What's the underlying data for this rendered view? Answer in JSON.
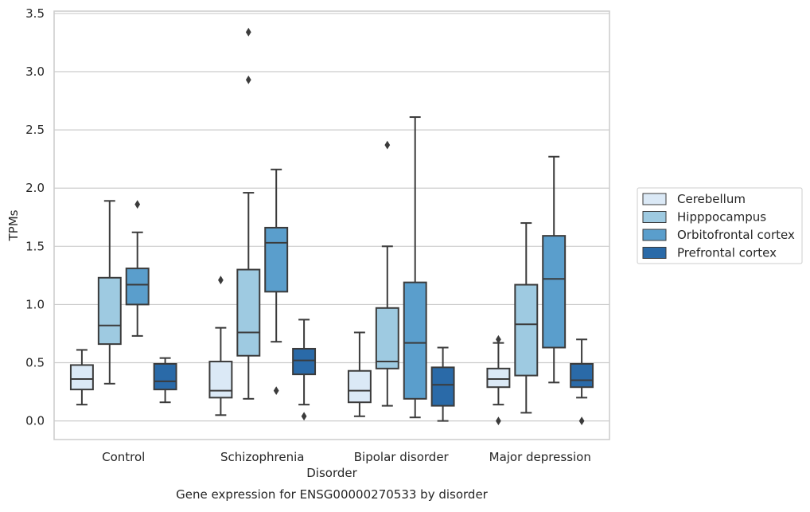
{
  "chart_data": {
    "type": "box",
    "title": "Gene expression for ENSG00000270533 by disorder",
    "xlabel": "Disorder",
    "ylabel": "TPMs",
    "ylim": [
      -0.16,
      3.52
    ],
    "yticks": [
      0.0,
      0.5,
      1.0,
      1.5,
      2.0,
      2.5,
      3.0,
      3.5
    ],
    "ytick_labels": [
      "0.0",
      "0.5",
      "1.0",
      "1.5",
      "2.0",
      "2.5",
      "3.0",
      "3.5"
    ],
    "grid": true,
    "legend_position": "right",
    "categories": [
      "Control",
      "Schizophrenia",
      "Bipolar disorder",
      "Major depression"
    ],
    "series": [
      {
        "name": "Cerebellum",
        "color": "#dbe9f6",
        "boxes": [
          {
            "whislo": 0.14,
            "q1": 0.27,
            "med": 0.36,
            "q3": 0.48,
            "whishi": 0.61,
            "fliers": []
          },
          {
            "whislo": 0.05,
            "q1": 0.2,
            "med": 0.26,
            "q3": 0.51,
            "whishi": 0.8,
            "fliers": [
              1.21
            ]
          },
          {
            "whislo": 0.04,
            "q1": 0.16,
            "med": 0.26,
            "q3": 0.43,
            "whishi": 0.76,
            "fliers": []
          },
          {
            "whislo": 0.14,
            "q1": 0.29,
            "med": 0.36,
            "q3": 0.45,
            "whishi": 0.67,
            "fliers": [
              0.7,
              0.0
            ]
          }
        ]
      },
      {
        "name": "Hipppocampus",
        "color": "#9ecae1",
        "boxes": [
          {
            "whislo": 0.32,
            "q1": 0.66,
            "med": 0.82,
            "q3": 1.23,
            "whishi": 1.89,
            "fliers": []
          },
          {
            "whislo": 0.19,
            "q1": 0.56,
            "med": 0.76,
            "q3": 1.3,
            "whishi": 1.96,
            "fliers": [
              3.34,
              2.93
            ]
          },
          {
            "whislo": 0.13,
            "q1": 0.45,
            "med": 0.51,
            "q3": 0.97,
            "whishi": 1.5,
            "fliers": [
              2.37
            ]
          },
          {
            "whislo": 0.07,
            "q1": 0.39,
            "med": 0.83,
            "q3": 1.17,
            "whishi": 1.7,
            "fliers": []
          }
        ]
      },
      {
        "name": "Orbitofrontal cortex",
        "color": "#5a9ecc",
        "boxes": [
          {
            "whislo": 0.73,
            "q1": 1.0,
            "med": 1.17,
            "q3": 1.31,
            "whishi": 1.62,
            "fliers": [
              1.86
            ]
          },
          {
            "whislo": 0.68,
            "q1": 1.11,
            "med": 1.53,
            "q3": 1.66,
            "whishi": 2.16,
            "fliers": [
              0.26
            ]
          },
          {
            "whislo": 0.03,
            "q1": 0.19,
            "med": 0.67,
            "q3": 1.19,
            "whishi": 2.61,
            "fliers": []
          },
          {
            "whislo": 0.33,
            "q1": 0.63,
            "med": 1.22,
            "q3": 1.59,
            "whishi": 2.27,
            "fliers": []
          }
        ]
      },
      {
        "name": "Prefrontal cortex",
        "color": "#2a6aa8",
        "boxes": [
          {
            "whislo": 0.16,
            "q1": 0.27,
            "med": 0.34,
            "q3": 0.49,
            "whishi": 0.54,
            "fliers": []
          },
          {
            "whislo": 0.14,
            "q1": 0.4,
            "med": 0.52,
            "q3": 0.62,
            "whishi": 0.87,
            "fliers": [
              0.04
            ]
          },
          {
            "whislo": 0.0,
            "q1": 0.13,
            "med": 0.31,
            "q3": 0.46,
            "whishi": 0.63,
            "fliers": []
          },
          {
            "whislo": 0.2,
            "q1": 0.29,
            "med": 0.35,
            "q3": 0.49,
            "whishi": 0.7,
            "fliers": [
              0.0
            ]
          }
        ]
      }
    ]
  }
}
